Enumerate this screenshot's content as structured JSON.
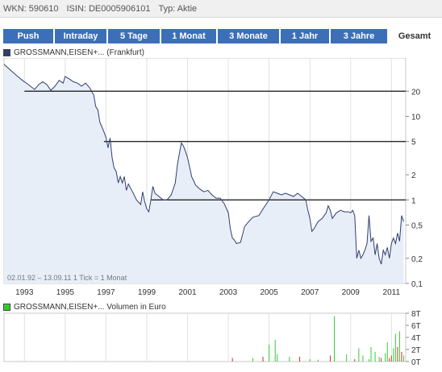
{
  "header": {
    "wkn": "WKN: 590610",
    "isin": "ISIN: DE0005906101",
    "typ": "Typ: Aktie"
  },
  "tabs": [
    {
      "label": "Push",
      "active": false
    },
    {
      "label": "Intraday",
      "active": false
    },
    {
      "label": "5 Tage",
      "active": false
    },
    {
      "label": "1 Monat",
      "active": false
    },
    {
      "label": "3 Monate",
      "active": false
    },
    {
      "label": "1 Jahr",
      "active": false
    },
    {
      "label": "3 Jahre",
      "active": false
    },
    {
      "label": "Gesamt",
      "active": true
    }
  ],
  "colors": {
    "tab_bg": "#3c6fb7",
    "price_line": "#2f3f6f",
    "area_fill": "#e8eef8",
    "volume_green": "#33cc33",
    "volume_red": "#cc3333",
    "price_legend": "#2f3f6f",
    "volume_legend": "#33cc33"
  },
  "price_chart": {
    "legend": "GROSSMANN,EISEN+... (Frankfurt)",
    "footnote": "02.01.92 – 13.09.11   1 Tick = 1 Monat"
  },
  "volume_chart": {
    "legend": "GROSSMANN,EISEN+... Volumen in Euro"
  },
  "chart_data": [
    {
      "type": "line",
      "scale": "log",
      "xlim": [
        1992.0,
        2011.7
      ],
      "ylim": [
        0.1,
        50
      ],
      "x_ticks": [
        "1993",
        "1995",
        "1997",
        "1999",
        "2001",
        "2003",
        "2005",
        "2007",
        "2009",
        "2011"
      ],
      "y_ticks": [
        {
          "value": 20,
          "label": "20"
        },
        {
          "value": 10,
          "label": "10"
        },
        {
          "value": 5,
          "label": "5"
        },
        {
          "value": 2,
          "label": "2"
        },
        {
          "value": 1,
          "label": "1"
        },
        {
          "value": 0.5,
          "label": "0,5"
        },
        {
          "value": 0.2,
          "label": "0,2"
        },
        {
          "value": 0.1,
          "label": "0,1"
        }
      ],
      "grid": "vertical",
      "reference_lines": [
        {
          "value": 20,
          "from": 1993.0,
          "to": 2011.7
        },
        {
          "value": 5,
          "from": 1996.9,
          "to": 2011.7
        },
        {
          "value": 1,
          "from": 1999.2,
          "to": 2011.7
        }
      ],
      "series": [
        {
          "points": [
            [
              1992.0,
              42
            ],
            [
              1992.3,
              36
            ],
            [
              1992.6,
              31
            ],
            [
              1992.9,
              27
            ],
            [
              1993.2,
              24
            ],
            [
              1993.5,
              21
            ],
            [
              1993.7,
              24
            ],
            [
              1993.9,
              26
            ],
            [
              1994.1,
              24
            ],
            [
              1994.3,
              20.5
            ],
            [
              1994.5,
              23
            ],
            [
              1994.7,
              27
            ],
            [
              1994.9,
              25
            ],
            [
              1995.0,
              30
            ],
            [
              1995.2,
              28
            ],
            [
              1995.4,
              26
            ],
            [
              1995.6,
              25
            ],
            [
              1995.8,
              23
            ],
            [
              1996.0,
              25
            ],
            [
              1996.2,
              22
            ],
            [
              1996.4,
              18
            ],
            [
              1996.5,
              13
            ],
            [
              1996.6,
              12
            ],
            [
              1996.7,
              8.5
            ],
            [
              1996.8,
              7.5
            ],
            [
              1996.9,
              6.5
            ],
            [
              1997.0,
              5.6
            ],
            [
              1997.1,
              4.2
            ],
            [
              1997.2,
              5.5
            ],
            [
              1997.3,
              3.2
            ],
            [
              1997.4,
              2.4
            ],
            [
              1997.5,
              2.2
            ],
            [
              1997.6,
              1.6
            ],
            [
              1997.7,
              1.9
            ],
            [
              1997.8,
              1.6
            ],
            [
              1997.9,
              1.9
            ],
            [
              1998.0,
              1.3
            ],
            [
              1998.1,
              1.55
            ],
            [
              1998.3,
              1.25
            ],
            [
              1998.5,
              1.0
            ],
            [
              1998.7,
              0.88
            ],
            [
              1998.8,
              1.25
            ],
            [
              1998.9,
              0.95
            ],
            [
              1999.0,
              0.78
            ],
            [
              1999.1,
              0.72
            ],
            [
              1999.2,
              1.0
            ],
            [
              1999.3,
              1.45
            ],
            [
              1999.4,
              1.2
            ],
            [
              1999.6,
              1.1
            ],
            [
              1999.8,
              1.0
            ],
            [
              2000.0,
              1.0
            ],
            [
              2000.2,
              1.15
            ],
            [
              2000.4,
              1.6
            ],
            [
              2000.5,
              2.6
            ],
            [
              2000.6,
              3.6
            ],
            [
              2000.7,
              4.8
            ],
            [
              2000.8,
              4.4
            ],
            [
              2000.9,
              3.8
            ],
            [
              2001.0,
              3.2
            ],
            [
              2001.1,
              2.5
            ],
            [
              2001.2,
              1.9
            ],
            [
              2001.4,
              1.5
            ],
            [
              2001.6,
              1.35
            ],
            [
              2001.8,
              1.25
            ],
            [
              2002.0,
              1.3
            ],
            [
              2002.2,
              1.15
            ],
            [
              2002.4,
              1.05
            ],
            [
              2002.6,
              1.05
            ],
            [
              2002.8,
              0.9
            ],
            [
              2003.0,
              0.7
            ],
            [
              2003.1,
              0.45
            ],
            [
              2003.2,
              0.35
            ],
            [
              2003.3,
              0.33
            ],
            [
              2003.4,
              0.3
            ],
            [
              2003.6,
              0.31
            ],
            [
              2003.8,
              0.48
            ],
            [
              2004.0,
              0.55
            ],
            [
              2004.2,
              0.62
            ],
            [
              2004.5,
              0.65
            ],
            [
              2004.8,
              0.85
            ],
            [
              2005.0,
              1.0
            ],
            [
              2005.2,
              1.25
            ],
            [
              2005.4,
              1.2
            ],
            [
              2005.6,
              1.15
            ],
            [
              2005.8,
              1.2
            ],
            [
              2006.0,
              1.15
            ],
            [
              2006.2,
              1.1
            ],
            [
              2006.4,
              1.2
            ],
            [
              2006.6,
              1.1
            ],
            [
              2006.8,
              1.0
            ],
            [
              2006.9,
              0.75
            ],
            [
              2007.0,
              0.6
            ],
            [
              2007.1,
              0.42
            ],
            [
              2007.2,
              0.45
            ],
            [
              2007.4,
              0.55
            ],
            [
              2007.6,
              0.6
            ],
            [
              2007.8,
              0.7
            ],
            [
              2007.9,
              0.85
            ],
            [
              2008.0,
              0.75
            ],
            [
              2008.1,
              0.6
            ],
            [
              2008.3,
              0.7
            ],
            [
              2008.5,
              0.75
            ],
            [
              2008.7,
              0.72
            ],
            [
              2008.9,
              0.72
            ],
            [
              2009.0,
              0.7
            ],
            [
              2009.1,
              0.75
            ],
            [
              2009.2,
              0.65
            ],
            [
              2009.3,
              0.2
            ],
            [
              2009.4,
              0.25
            ],
            [
              2009.5,
              0.2
            ],
            [
              2009.6,
              0.22
            ],
            [
              2009.7,
              0.25
            ],
            [
              2009.8,
              0.3
            ],
            [
              2009.9,
              0.65
            ],
            [
              2010.0,
              0.32
            ],
            [
              2010.1,
              0.35
            ],
            [
              2010.2,
              0.22
            ],
            [
              2010.3,
              0.3
            ],
            [
              2010.4,
              0.2
            ],
            [
              2010.5,
              0.17
            ],
            [
              2010.6,
              0.25
            ],
            [
              2010.7,
              0.22
            ],
            [
              2010.8,
              0.27
            ],
            [
              2010.9,
              0.2
            ],
            [
              2011.0,
              0.3
            ],
            [
              2011.1,
              0.35
            ],
            [
              2011.2,
              0.3
            ],
            [
              2011.3,
              0.4
            ],
            [
              2011.4,
              0.32
            ],
            [
              2011.5,
              0.65
            ],
            [
              2011.6,
              0.55
            ]
          ]
        }
      ]
    },
    {
      "type": "bar",
      "xlim": [
        1992.0,
        2011.7
      ],
      "ylim": [
        0,
        8
      ],
      "unit": "T",
      "y_ticks": [
        {
          "value": 8,
          "label": "8T"
        },
        {
          "value": 6,
          "label": "6T"
        },
        {
          "value": 4,
          "label": "4T"
        },
        {
          "value": 2,
          "label": "2T"
        },
        {
          "value": 0,
          "label": "0T"
        }
      ],
      "grid": "vertical",
      "bars": [
        {
          "x": 2003.2,
          "value": 0.6,
          "color": "red"
        },
        {
          "x": 2004.2,
          "value": 0.6,
          "color": "green"
        },
        {
          "x": 2004.7,
          "value": 0.8,
          "color": "red"
        },
        {
          "x": 2005.0,
          "value": 2.8,
          "color": "green"
        },
        {
          "x": 2005.3,
          "value": 3.6,
          "color": "green"
        },
        {
          "x": 2005.4,
          "value": 1.2,
          "color": "green"
        },
        {
          "x": 2006.0,
          "value": 0.8,
          "color": "green"
        },
        {
          "x": 2006.5,
          "value": 0.8,
          "color": "red"
        },
        {
          "x": 2007.0,
          "value": 0.4,
          "color": "green"
        },
        {
          "x": 2007.4,
          "value": 0.3,
          "color": "green"
        },
        {
          "x": 2008.0,
          "value": 1.0,
          "color": "red"
        },
        {
          "x": 2008.2,
          "value": 7.5,
          "color": "green"
        },
        {
          "x": 2008.8,
          "value": 1.2,
          "color": "green"
        },
        {
          "x": 2009.2,
          "value": 0.4,
          "color": "red"
        },
        {
          "x": 2009.4,
          "value": 2.2,
          "color": "green"
        },
        {
          "x": 2009.6,
          "value": 1.0,
          "color": "green"
        },
        {
          "x": 2009.9,
          "value": 0.4,
          "color": "green"
        },
        {
          "x": 2010.0,
          "value": 2.4,
          "color": "green"
        },
        {
          "x": 2010.2,
          "value": 1.6,
          "color": "green"
        },
        {
          "x": 2010.4,
          "value": 0.8,
          "color": "green"
        },
        {
          "x": 2010.5,
          "value": 0.6,
          "color": "red"
        },
        {
          "x": 2010.7,
          "value": 1.4,
          "color": "green"
        },
        {
          "x": 2010.8,
          "value": 3.2,
          "color": "green"
        },
        {
          "x": 2010.9,
          "value": 0.6,
          "color": "red"
        },
        {
          "x": 2011.0,
          "value": 1.0,
          "color": "red"
        },
        {
          "x": 2011.1,
          "value": 2.2,
          "color": "green"
        },
        {
          "x": 2011.2,
          "value": 4.6,
          "color": "green"
        },
        {
          "x": 2011.3,
          "value": 2.4,
          "color": "red"
        },
        {
          "x": 2011.4,
          "value": 5.0,
          "color": "green"
        },
        {
          "x": 2011.5,
          "value": 1.6,
          "color": "red"
        },
        {
          "x": 2011.6,
          "value": 1.0,
          "color": "green"
        }
      ]
    }
  ]
}
